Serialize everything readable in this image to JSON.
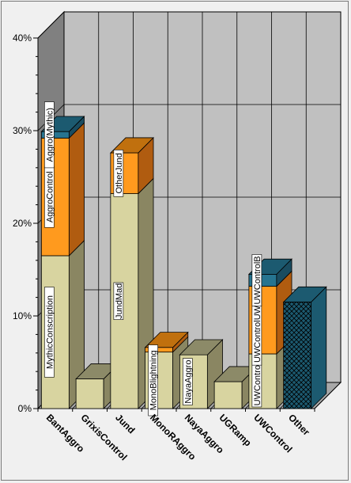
{
  "chart_data": {
    "type": "bar",
    "stacked": true,
    "three_d": true,
    "title": "",
    "xlabel": "",
    "ylabel": "",
    "ylim": [
      0,
      40
    ],
    "y_tick_labels": [
      "0%",
      "10%",
      "20%",
      "30%",
      "40%"
    ],
    "grid": true,
    "legend": "none",
    "categories": [
      "BantAggro",
      "GrixisControl",
      "Jund",
      "MonoRAggro",
      "NayaAggro",
      "UGRamp",
      "UWControl",
      "Other"
    ],
    "series": [
      {
        "values": [
          16.5,
          3.2,
          23.2,
          6.1,
          5.8,
          2.9,
          5.9,
          11.5
        ]
      },
      {
        "values": [
          12.7,
          0,
          4.4,
          0.5,
          0,
          0,
          7.3,
          0
        ]
      },
      {
        "values": [
          0.7,
          0,
          0,
          0,
          0,
          0,
          1.3,
          0
        ]
      }
    ],
    "segment_labels": [
      [
        "MythicConscription",
        "",
        "JundMad",
        "MonoBlightning",
        "NayaAggro",
        "",
        "UWControlR",
        ""
      ],
      [
        "AggroControl",
        "",
        "OtherJund",
        "",
        "",
        "",
        "UWControlUWControl",
        ""
      ],
      [
        "Aggro(Mythic)",
        "",
        "",
        "",
        "",
        "",
        "UWControlB",
        ""
      ]
    ],
    "colors": {
      "series": [
        "#d8d4a0",
        "#ff9a1e",
        "#267490"
      ],
      "series_top": [
        "#8c8a68",
        "#c0700e",
        "#1c5a70"
      ],
      "series_side": [
        "#8a8662",
        "#b05c10",
        "#1a4c60"
      ],
      "other": "#1c5a70",
      "wall_back": "#c0c0c0",
      "wall_side": "#808080",
      "floor": "#a8a8a8",
      "grid": "#000000"
    }
  }
}
